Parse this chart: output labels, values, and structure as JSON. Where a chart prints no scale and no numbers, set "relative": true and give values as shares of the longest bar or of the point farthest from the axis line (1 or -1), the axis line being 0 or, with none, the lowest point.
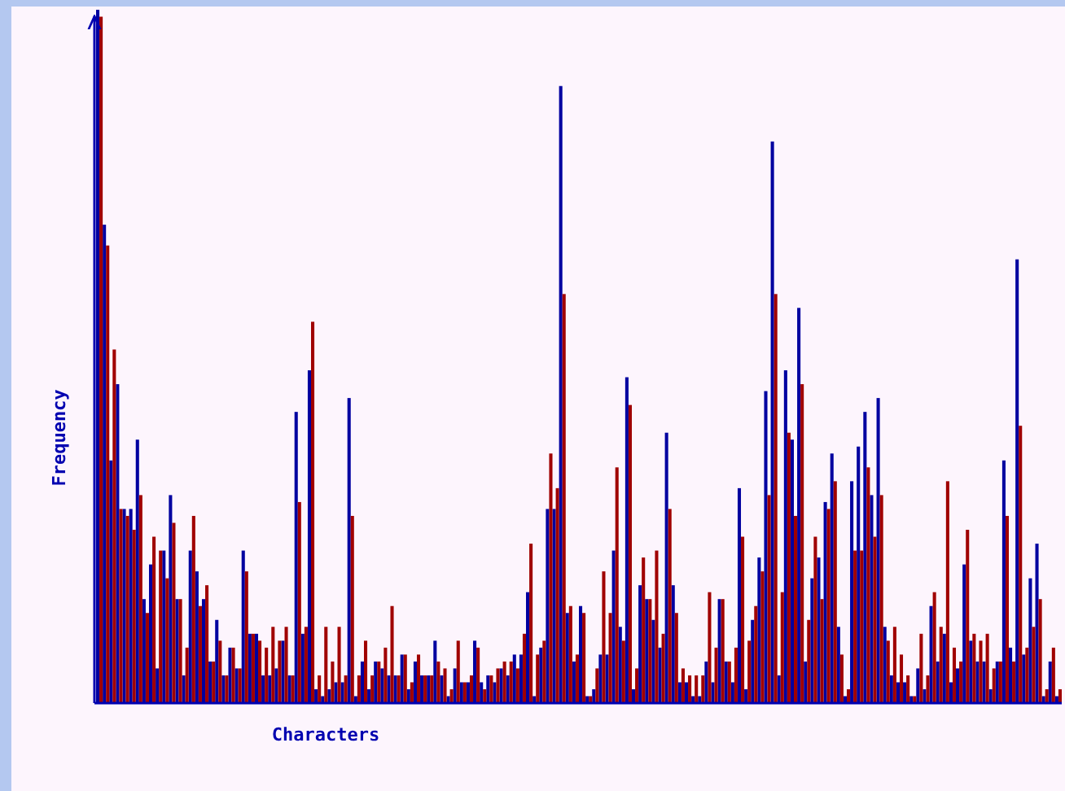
{
  "chart_data": {
    "type": "bar",
    "relative": true,
    "xlabel": "Characters",
    "ylabel": "Frequency",
    "categories": [
      null,
      null,
      null,
      null,
      null,
      null,
      null,
      null,
      null,
      null,
      null,
      null,
      null,
      null,
      null,
      null,
      null,
      null,
      null,
      null,
      null,
      null,
      null,
      null,
      null,
      null,
      null,
      null,
      null,
      null,
      null,
      null,
      null,
      null,
      null,
      null,
      null,
      null,
      null,
      null,
      null,
      null,
      null,
      null,
      null,
      null,
      null,
      null,
      null,
      null,
      null,
      null,
      null,
      null,
      null,
      null,
      null,
      null,
      null,
      null,
      null,
      null,
      null,
      null,
      null,
      null,
      null,
      null,
      null,
      null,
      null,
      null,
      null,
      null,
      null,
      null,
      null,
      null,
      null,
      null,
      null,
      null,
      null,
      null,
      null,
      null,
      null,
      null,
      null,
      null,
      null,
      null,
      null,
      null,
      null,
      null,
      null,
      null,
      null,
      null,
      null,
      null,
      null,
      null,
      null,
      null,
      null,
      null,
      null,
      null,
      null,
      null,
      null,
      null,
      null,
      null,
      null,
      null,
      null,
      null,
      null,
      null,
      null,
      null,
      null,
      null,
      null,
      null,
      null,
      null,
      null,
      null,
      null,
      null,
      null,
      null,
      null,
      null,
      null,
      null,
      null,
      null,
      null,
      null,
      null,
      null
    ],
    "series": [
      {
        "color": "#0000a0",
        "values": [
          1,
          0.69,
          0.35,
          0.46,
          0.28,
          0.28,
          0.38,
          0.15,
          0.2,
          0.05,
          0.22,
          0.3,
          0.15,
          0.04,
          0.22,
          0.19,
          0.15,
          0.06,
          0.12,
          0.04,
          0.08,
          0.05,
          0.22,
          0.1,
          0.1,
          0.04,
          0.04,
          0.05,
          0.09,
          0.04,
          0.42,
          0.1,
          0.48,
          0.02,
          0.01,
          0.02,
          0.03,
          0.03,
          0.44,
          0.01,
          0.06,
          0.02,
          0.06,
          0.05,
          0.04,
          0.04,
          0.07,
          0.02,
          0.06,
          0.04,
          0.04,
          0.09,
          0.04,
          0.01,
          0.05,
          0.03,
          0.03,
          0.09,
          0.03,
          0.04,
          0.03,
          0.05,
          0.04,
          0.07,
          0.07,
          0.16,
          0.01,
          0.08,
          0.28,
          0.28,
          0.89,
          0.13,
          0.06,
          0.14,
          0.01,
          0.02,
          0.07,
          0.07,
          0.22,
          0.11,
          0.47,
          0.02,
          0.17,
          0.15,
          0.12,
          0.08,
          0.39,
          0.17,
          0.03,
          0.03,
          0.01,
          0.01,
          0.06,
          0.03,
          0.15,
          0.06,
          0.03,
          0.31,
          0.02,
          0.12,
          0.21,
          0.45,
          0.81,
          0.04,
          0.48,
          0.38,
          0.57,
          0.06,
          0.18,
          0.21,
          0.29,
          0.36,
          0.11,
          0.01,
          0.32,
          0.37,
          0.42,
          0.3,
          0.44,
          0.11,
          0.04,
          0.03,
          0.03,
          0.01,
          0.05,
          0.02,
          0.14,
          0.06,
          0.1,
          0.03,
          0.05,
          0.2,
          0.09,
          0.06,
          0.06,
          0.02,
          0.06,
          0.35,
          0.08,
          0.64,
          0.07,
          0.18,
          0.23,
          0.01,
          0.06,
          0.01
        ]
      },
      {
        "color": "#a00000",
        "values": [
          0.99,
          0.66,
          0.51,
          0.28,
          0.27,
          0.25,
          0.3,
          0.13,
          0.24,
          0.22,
          0.18,
          0.26,
          0.15,
          0.08,
          0.27,
          0.14,
          0.17,
          0.06,
          0.09,
          0.04,
          0.08,
          0.05,
          0.19,
          0.1,
          0.09,
          0.08,
          0.11,
          0.09,
          0.11,
          0.04,
          0.29,
          0.11,
          0.55,
          0.04,
          0.11,
          0.06,
          0.11,
          0.04,
          0.27,
          0.04,
          0.09,
          0.04,
          0.06,
          0.08,
          0.14,
          0.04,
          0.07,
          0.03,
          0.07,
          0.04,
          0.04,
          0.06,
          0.05,
          0.02,
          0.09,
          0.03,
          0.04,
          0.08,
          0.02,
          0.04,
          0.05,
          0.06,
          0.06,
          0.05,
          0.1,
          0.23,
          0.07,
          0.09,
          0.36,
          0.31,
          0.59,
          0.14,
          0.07,
          0.13,
          0.01,
          0.05,
          0.19,
          0.13,
          0.34,
          0.09,
          0.43,
          0.05,
          0.21,
          0.15,
          0.22,
          0.1,
          0.28,
          0.13,
          0.05,
          0.04,
          0.04,
          0.04,
          0.16,
          0.08,
          0.15,
          0.06,
          0.08,
          0.24,
          0.09,
          0.14,
          0.19,
          0.3,
          0.59,
          0.16,
          0.39,
          0.27,
          0.46,
          0.12,
          0.24,
          0.15,
          0.28,
          0.32,
          0.07,
          0.02,
          0.22,
          0.22,
          0.34,
          0.24,
          0.3,
          0.09,
          0.11,
          0.07,
          0.04,
          0.01,
          0.1,
          0.04,
          0.16,
          0.11,
          0.32,
          0.08,
          0.06,
          0.25,
          0.1,
          0.09,
          0.1,
          0.05,
          0.06,
          0.27,
          0.06,
          0.4,
          0.08,
          0.11,
          0.15,
          0.02,
          0.08,
          0.02
        ]
      }
    ]
  }
}
